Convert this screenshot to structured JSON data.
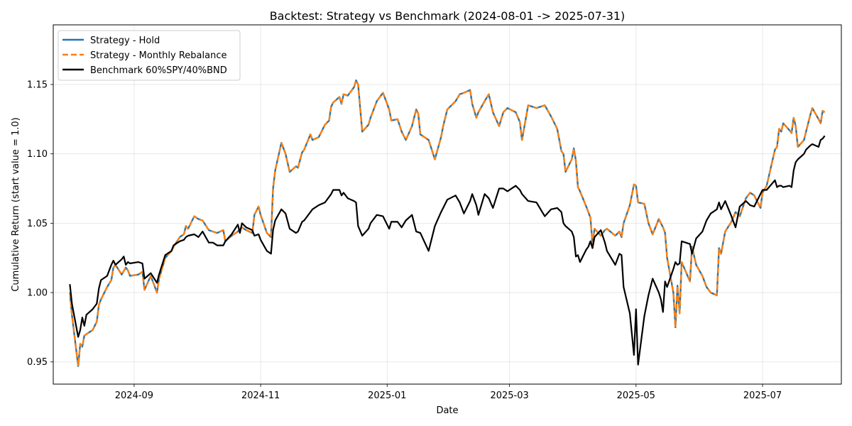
{
  "chart_data": {
    "type": "line",
    "title": "Backtest: Strategy vs Benchmark (2024-08-01 -> 2025-07-31)",
    "xlabel": "Date",
    "ylabel": "Cumulative Return (start value = 1.0)",
    "xlim": [
      "2024-07-24",
      "2025-08-08"
    ],
    "ylim": [
      0.934,
      1.193
    ],
    "grid": true,
    "legend": "top-left",
    "x_ticks": [
      {
        "date": "2024-09-01",
        "label": "2024-09"
      },
      {
        "date": "2024-11-01",
        "label": "2024-11"
      },
      {
        "date": "2025-01-01",
        "label": "2025-01"
      },
      {
        "date": "2025-03-01",
        "label": "2025-03"
      },
      {
        "date": "2025-05-01",
        "label": "2025-05"
      },
      {
        "date": "2025-07-01",
        "label": "2025-07"
      }
    ],
    "y_ticks": [
      {
        "value": 0.95,
        "label": "0.95"
      },
      {
        "value": 1.0,
        "label": "1.00"
      },
      {
        "value": 1.05,
        "label": "1.05"
      },
      {
        "value": 1.1,
        "label": "1.10"
      },
      {
        "value": 1.15,
        "label": "1.15"
      }
    ],
    "series": [
      {
        "name": "Strategy - Hold",
        "color": "#1f77b4",
        "style": "solid",
        "points": [
          [
            "2024-08-01",
            1.0
          ],
          [
            "2024-08-02",
            0.984
          ],
          [
            "2024-08-05",
            0.947
          ],
          [
            "2024-08-06",
            0.963
          ],
          [
            "2024-08-07",
            0.961
          ],
          [
            "2024-08-08",
            0.969
          ],
          [
            "2024-08-12",
            0.973
          ],
          [
            "2024-08-14",
            0.979
          ],
          [
            "2024-08-15",
            0.991
          ],
          [
            "2024-08-16",
            0.995
          ],
          [
            "2024-08-19",
            1.004
          ],
          [
            "2024-08-21",
            1.009
          ],
          [
            "2024-08-22",
            1.018
          ],
          [
            "2024-08-23",
            1.02
          ],
          [
            "2024-08-26",
            1.013
          ],
          [
            "2024-08-28",
            1.018
          ],
          [
            "2024-08-29",
            1.016
          ],
          [
            "2024-08-30",
            1.012
          ],
          [
            "2024-09-03",
            1.013
          ],
          [
            "2024-09-05",
            1.015
          ],
          [
            "2024-09-06",
            1.002
          ],
          [
            "2024-09-09",
            1.012
          ],
          [
            "2024-09-12",
            1.0
          ],
          [
            "2024-09-13",
            1.01
          ],
          [
            "2024-09-16",
            1.025
          ],
          [
            "2024-09-19",
            1.03
          ],
          [
            "2024-09-20",
            1.033
          ],
          [
            "2024-09-23",
            1.04
          ],
          [
            "2024-09-25",
            1.042
          ],
          [
            "2024-09-26",
            1.048
          ],
          [
            "2024-09-27",
            1.046
          ],
          [
            "2024-09-30",
            1.055
          ],
          [
            "2024-10-02",
            1.053
          ],
          [
            "2024-10-04",
            1.052
          ],
          [
            "2024-10-07",
            1.045
          ],
          [
            "2024-10-09",
            1.044
          ],
          [
            "2024-10-11",
            1.043
          ],
          [
            "2024-10-14",
            1.045
          ],
          [
            "2024-10-15",
            1.037
          ],
          [
            "2024-10-18",
            1.041
          ],
          [
            "2024-10-21",
            1.044
          ],
          [
            "2024-10-23",
            1.047
          ],
          [
            "2024-10-25",
            1.045
          ],
          [
            "2024-10-28",
            1.043
          ],
          [
            "2024-10-29",
            1.056
          ],
          [
            "2024-10-31",
            1.062
          ],
          [
            "2024-11-01",
            1.056
          ],
          [
            "2024-11-04",
            1.043
          ],
          [
            "2024-11-06",
            1.04
          ],
          [
            "2024-11-07",
            1.075
          ],
          [
            "2024-11-08",
            1.088
          ],
          [
            "2024-11-11",
            1.108
          ],
          [
            "2024-11-13",
            1.1
          ],
          [
            "2024-11-15",
            1.087
          ],
          [
            "2024-11-18",
            1.091
          ],
          [
            "2024-11-19",
            1.09
          ],
          [
            "2024-11-21",
            1.101
          ],
          [
            "2024-11-22",
            1.103
          ],
          [
            "2024-11-25",
            1.114
          ],
          [
            "2024-11-26",
            1.11
          ],
          [
            "2024-11-29",
            1.112
          ],
          [
            "2024-12-02",
            1.121
          ],
          [
            "2024-12-04",
            1.124
          ],
          [
            "2024-12-05",
            1.134
          ],
          [
            "2024-12-06",
            1.137
          ],
          [
            "2024-12-09",
            1.141
          ],
          [
            "2024-12-10",
            1.136
          ],
          [
            "2024-12-11",
            1.143
          ],
          [
            "2024-12-13",
            1.142
          ],
          [
            "2024-12-16",
            1.148
          ],
          [
            "2024-12-17",
            1.153
          ],
          [
            "2024-12-18",
            1.15
          ],
          [
            "2024-12-20",
            1.116
          ],
          [
            "2024-12-23",
            1.121
          ],
          [
            "2024-12-24",
            1.126
          ],
          [
            "2024-12-27",
            1.138
          ],
          [
            "2024-12-30",
            1.144
          ],
          [
            "2025-01-02",
            1.132
          ],
          [
            "2025-01-03",
            1.124
          ],
          [
            "2025-01-06",
            1.125
          ],
          [
            "2025-01-08",
            1.116
          ],
          [
            "2025-01-10",
            1.11
          ],
          [
            "2025-01-13",
            1.12
          ],
          [
            "2025-01-15",
            1.132
          ],
          [
            "2025-01-16",
            1.129
          ],
          [
            "2025-01-17",
            1.114
          ],
          [
            "2025-01-21",
            1.11
          ],
          [
            "2025-01-24",
            1.096
          ],
          [
            "2025-01-27",
            1.112
          ],
          [
            "2025-01-28",
            1.12
          ],
          [
            "2025-01-30",
            1.132
          ],
          [
            "2025-02-03",
            1.138
          ],
          [
            "2025-02-05",
            1.143
          ],
          [
            "2025-02-07",
            1.144
          ],
          [
            "2025-02-10",
            1.146
          ],
          [
            "2025-02-11",
            1.136
          ],
          [
            "2025-02-13",
            1.126
          ],
          [
            "2025-02-14",
            1.13
          ],
          [
            "2025-02-17",
            1.138
          ],
          [
            "2025-02-19",
            1.143
          ],
          [
            "2025-02-21",
            1.13
          ],
          [
            "2025-02-24",
            1.12
          ],
          [
            "2025-02-26",
            1.13
          ],
          [
            "2025-02-28",
            1.133
          ],
          [
            "2025-03-04",
            1.13
          ],
          [
            "2025-03-06",
            1.123
          ],
          [
            "2025-03-07",
            1.11
          ],
          [
            "2025-03-10",
            1.135
          ],
          [
            "2025-03-14",
            1.133
          ],
          [
            "2025-03-18",
            1.135
          ],
          [
            "2025-03-21",
            1.127
          ],
          [
            "2025-03-24",
            1.118
          ],
          [
            "2025-03-26",
            1.102
          ],
          [
            "2025-03-27",
            1.1
          ],
          [
            "2025-03-28",
            1.087
          ],
          [
            "2025-03-31",
            1.096
          ],
          [
            "2025-04-01",
            1.104
          ],
          [
            "2025-04-02",
            1.095
          ],
          [
            "2025-04-03",
            1.076
          ],
          [
            "2025-04-04",
            1.073
          ],
          [
            "2025-04-07",
            1.062
          ],
          [
            "2025-04-08",
            1.058
          ],
          [
            "2025-04-09",
            1.054
          ],
          [
            "2025-04-10",
            1.035
          ],
          [
            "2025-04-11",
            1.046
          ],
          [
            "2025-04-14",
            1.041
          ],
          [
            "2025-04-16",
            1.045
          ],
          [
            "2025-04-17",
            1.046
          ],
          [
            "2025-04-21",
            1.041
          ],
          [
            "2025-04-23",
            1.044
          ],
          [
            "2025-04-24",
            1.04
          ],
          [
            "2025-04-25",
            1.05
          ],
          [
            "2025-04-28",
            1.063
          ],
          [
            "2025-04-30",
            1.078
          ],
          [
            "2025-05-01",
            1.077
          ],
          [
            "2025-05-02",
            1.065
          ],
          [
            "2025-05-05",
            1.064
          ],
          [
            "2025-05-07",
            1.05
          ],
          [
            "2025-05-09",
            1.042
          ],
          [
            "2025-05-12",
            1.053
          ],
          [
            "2025-05-13",
            1.05
          ],
          [
            "2025-05-14",
            1.047
          ],
          [
            "2025-05-15",
            1.043
          ],
          [
            "2025-05-16",
            1.025
          ],
          [
            "2025-05-19",
            1.0
          ],
          [
            "2025-05-20",
            0.975
          ],
          [
            "2025-05-21",
            1.005
          ],
          [
            "2025-05-22",
            0.985
          ],
          [
            "2025-05-23",
            1.022
          ],
          [
            "2025-05-27",
            1.008
          ],
          [
            "2025-05-28",
            1.033
          ],
          [
            "2025-05-30",
            1.02
          ],
          [
            "2025-06-02",
            1.012
          ],
          [
            "2025-06-04",
            1.004
          ],
          [
            "2025-06-06",
            1.0
          ],
          [
            "2025-06-09",
            0.998
          ],
          [
            "2025-06-10",
            1.032
          ],
          [
            "2025-06-11",
            1.028
          ],
          [
            "2025-06-13",
            1.044
          ],
          [
            "2025-06-16",
            1.051
          ],
          [
            "2025-06-18",
            1.058
          ],
          [
            "2025-06-20",
            1.055
          ],
          [
            "2025-06-23",
            1.068
          ],
          [
            "2025-06-25",
            1.072
          ],
          [
            "2025-06-27",
            1.07
          ],
          [
            "2025-06-30",
            1.061
          ],
          [
            "2025-07-01",
            1.072
          ],
          [
            "2025-07-03",
            1.077
          ],
          [
            "2025-07-07",
            1.103
          ],
          [
            "2025-07-08",
            1.105
          ],
          [
            "2025-07-09",
            1.118
          ],
          [
            "2025-07-10",
            1.116
          ],
          [
            "2025-07-11",
            1.122
          ],
          [
            "2025-07-14",
            1.117
          ],
          [
            "2025-07-15",
            1.115
          ],
          [
            "2025-07-16",
            1.126
          ],
          [
            "2025-07-17",
            1.12
          ],
          [
            "2025-07-18",
            1.105
          ],
          [
            "2025-07-21",
            1.11
          ],
          [
            "2025-07-22",
            1.116
          ],
          [
            "2025-07-24",
            1.128
          ],
          [
            "2025-07-25",
            1.133
          ],
          [
            "2025-07-28",
            1.125
          ],
          [
            "2025-07-29",
            1.122
          ],
          [
            "2025-07-30",
            1.131
          ],
          [
            "2025-07-31",
            1.13
          ]
        ]
      },
      {
        "name": "Strategy - Monthly Rebalance",
        "color": "#ff7f0e",
        "style": "dashed",
        "points": []
      },
      {
        "name": "Benchmark 60%SPY/40%BND",
        "color": "#000000",
        "style": "solid",
        "points": []
      }
    ]
  }
}
